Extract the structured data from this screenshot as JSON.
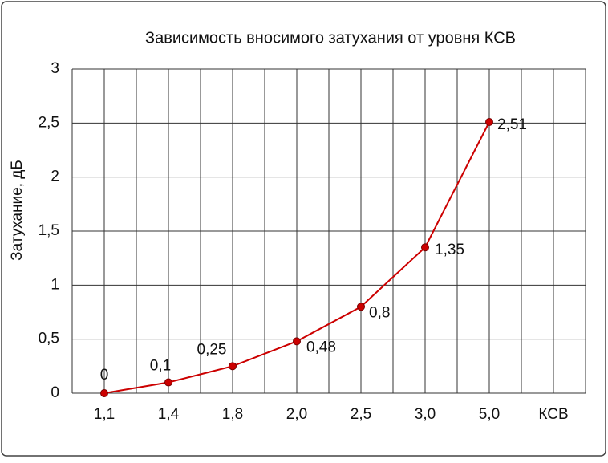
{
  "chart_data": {
    "type": "line",
    "title": "Зависимость вносимого затухания от уровня КСВ",
    "x_label": "КСВ",
    "y_label": "Затухание, дБ",
    "categories": [
      "1,1",
      "1,4",
      "1,8",
      "2,0",
      "2,5",
      "3,0",
      "5,0"
    ],
    "series": [
      {
        "name": "Затухание",
        "color": "#cc0000",
        "values": [
          0,
          0.1,
          0.25,
          0.48,
          0.8,
          1.35,
          2.51
        ],
        "value_labels": [
          "0",
          "0,1",
          "0,25",
          "0,48",
          "0,8",
          "1,35",
          "2,51"
        ]
      }
    ],
    "ylim": [
      0,
      3
    ],
    "yticks": [
      0,
      {
        "value": 0.5,
        "label": "0,5"
      },
      1,
      {
        "value": 1.5,
        "label": "1,5"
      },
      2,
      {
        "value": 2.5,
        "label": "2,5"
      },
      3
    ],
    "grid": true
  }
}
